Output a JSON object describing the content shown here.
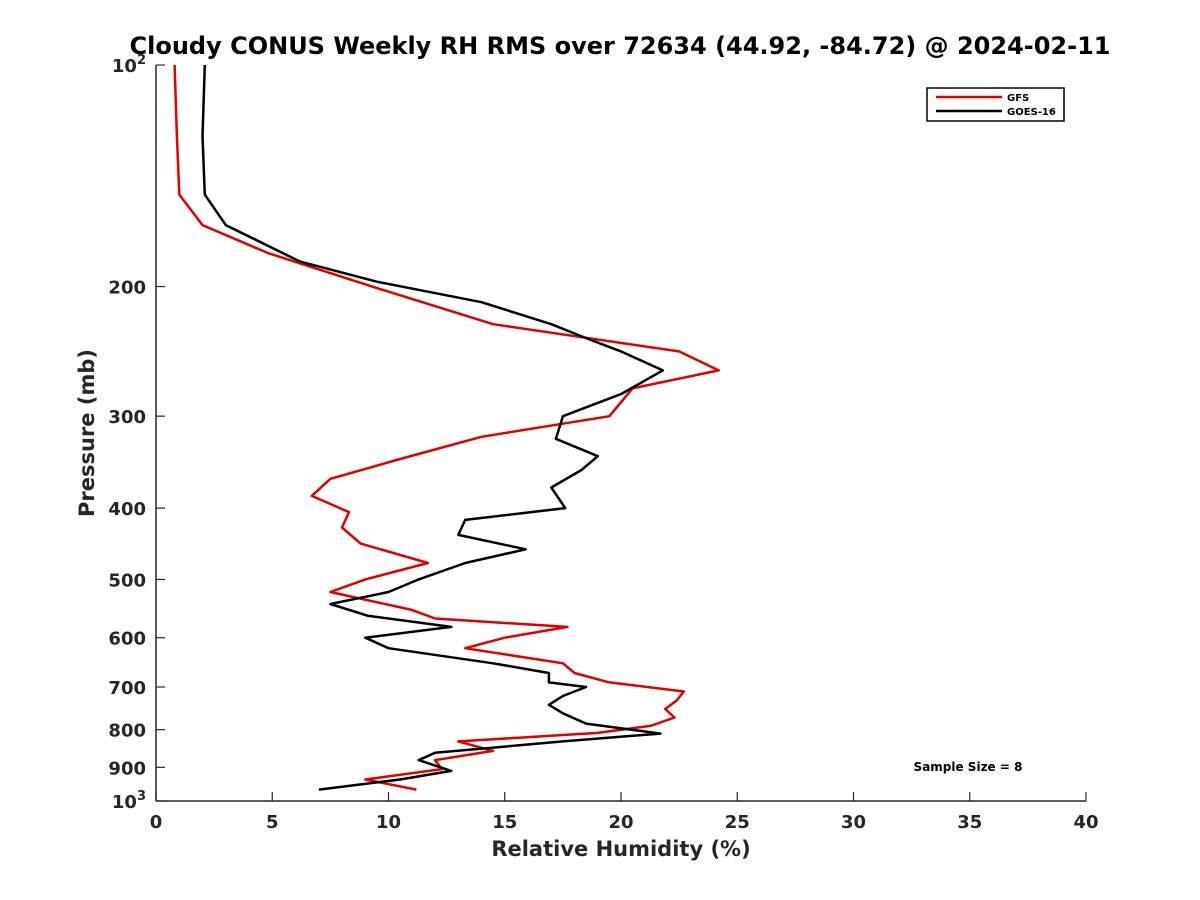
{
  "chart_data": {
    "type": "line",
    "title": "Cloudy CONUS Weekly RH RMS over 72634 (44.92, -84.72) @ 2024-02-11",
    "xlabel": "Relative Humidity (%)",
    "ylabel": "Pressure (mb)",
    "xlim": [
      0,
      40
    ],
    "ylim": [
      100,
      1000
    ],
    "yscale": "log",
    "y_reversed": true,
    "grid": false,
    "legend_position": "top-right",
    "x_ticks": [
      0,
      5,
      10,
      15,
      20,
      25,
      30,
      35,
      40
    ],
    "x_tick_labels": [
      "0",
      "5",
      "10",
      "15",
      "20",
      "25",
      "30",
      "35",
      "40"
    ],
    "y_ticks": [
      100,
      200,
      300,
      400,
      500,
      600,
      700,
      800,
      900,
      1000
    ],
    "y_tick_labels": [
      "10^2",
      "200",
      "300",
      "400",
      "500",
      "600",
      "700",
      "800",
      "900",
      "10^3"
    ],
    "annotation": "Sample Size = 8",
    "series": [
      {
        "name": "GFS",
        "color": "#e00000",
        "points": [
          [
            0.8,
            100
          ],
          [
            0.9,
            125
          ],
          [
            1.0,
            150
          ],
          [
            2.0,
            165
          ],
          [
            4.8,
            180
          ],
          [
            9.3,
            200
          ],
          [
            14.5,
            225
          ],
          [
            22.5,
            245
          ],
          [
            24.2,
            260
          ],
          [
            20.5,
            275
          ],
          [
            19.5,
            300
          ],
          [
            14.0,
            320
          ],
          [
            10.5,
            343
          ],
          [
            7.5,
            365
          ],
          [
            6.7,
            385
          ],
          [
            8.3,
            405
          ],
          [
            8.0,
            425
          ],
          [
            8.8,
            447
          ],
          [
            11.7,
            475
          ],
          [
            9.0,
            500
          ],
          [
            7.5,
            520
          ],
          [
            11.0,
            550
          ],
          [
            12.0,
            565
          ],
          [
            17.7,
            580
          ],
          [
            15.0,
            600
          ],
          [
            13.3,
            620
          ],
          [
            17.5,
            650
          ],
          [
            18.0,
            670
          ],
          [
            19.5,
            690
          ],
          [
            22.7,
            710
          ],
          [
            22.4,
            730
          ],
          [
            21.9,
            750
          ],
          [
            22.3,
            770
          ],
          [
            21.3,
            790
          ],
          [
            19.0,
            808
          ],
          [
            13.0,
            830
          ],
          [
            14.5,
            855
          ],
          [
            12.0,
            880
          ],
          [
            12.3,
            905
          ],
          [
            9.0,
            935
          ],
          [
            11.2,
            965
          ]
        ]
      },
      {
        "name": "GOES-16",
        "color": "#000000",
        "points": [
          [
            2.1,
            100
          ],
          [
            2.0,
            125
          ],
          [
            2.1,
            150
          ],
          [
            3.0,
            165
          ],
          [
            6.2,
            185
          ],
          [
            9.5,
            197
          ],
          [
            14.0,
            210
          ],
          [
            17.0,
            225
          ],
          [
            18.5,
            235
          ],
          [
            20.0,
            245
          ],
          [
            21.8,
            260
          ],
          [
            20.0,
            280
          ],
          [
            17.5,
            300
          ],
          [
            17.2,
            322
          ],
          [
            19.0,
            340
          ],
          [
            18.3,
            355
          ],
          [
            17.0,
            375
          ],
          [
            17.6,
            400
          ],
          [
            13.3,
            415
          ],
          [
            13.0,
            435
          ],
          [
            15.9,
            455
          ],
          [
            13.3,
            475
          ],
          [
            11.3,
            500
          ],
          [
            10.0,
            520
          ],
          [
            7.5,
            540
          ],
          [
            9.1,
            560
          ],
          [
            12.7,
            580
          ],
          [
            9.0,
            600
          ],
          [
            10.0,
            620
          ],
          [
            14.5,
            650
          ],
          [
            16.9,
            670
          ],
          [
            16.9,
            690
          ],
          [
            18.5,
            700
          ],
          [
            17.5,
            720
          ],
          [
            16.9,
            740
          ],
          [
            17.5,
            760
          ],
          [
            18.5,
            785
          ],
          [
            21.7,
            810
          ],
          [
            17.5,
            830
          ],
          [
            12.0,
            860
          ],
          [
            11.3,
            880
          ],
          [
            12.7,
            910
          ],
          [
            10.5,
            935
          ],
          [
            7.0,
            965
          ]
        ]
      }
    ]
  }
}
